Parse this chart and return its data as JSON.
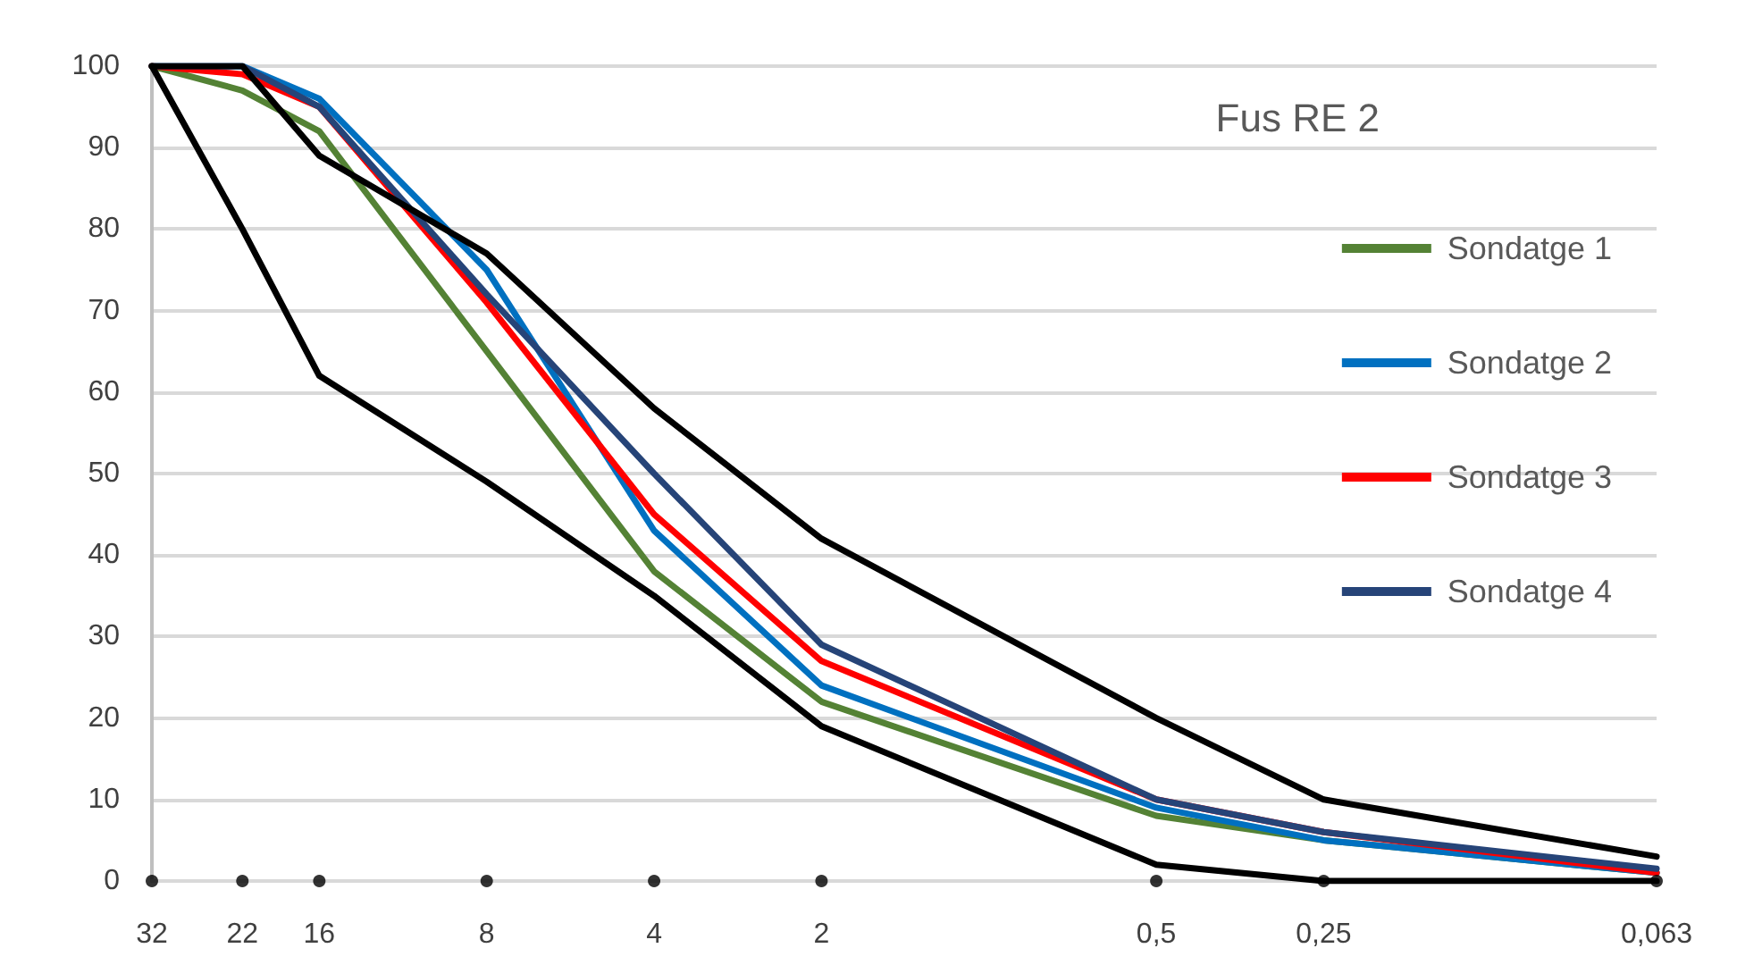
{
  "chart_data": {
    "type": "line",
    "title": "Fus RE 2",
    "x": [
      32,
      22,
      16,
      8,
      4,
      2,
      0.5,
      0.25,
      0.063
    ],
    "series": [
      {
        "name": "Sondatge 1",
        "color": "#548235",
        "values": [
          100,
          97,
          92,
          65,
          38,
          22,
          8,
          5,
          1
        ]
      },
      {
        "name": "Sondatge 2",
        "color": "#0070c0",
        "values": [
          100,
          100,
          96,
          75,
          43,
          24,
          9,
          5,
          1
        ]
      },
      {
        "name": "Sondatge 3",
        "color": "#ff0000",
        "values": [
          100,
          99,
          95,
          71,
          45,
          27,
          10,
          6,
          1
        ]
      },
      {
        "name": "Sondatge 4",
        "color": "#264478",
        "values": [
          100,
          100,
          95,
          72,
          50,
          29,
          10,
          6,
          1.5
        ]
      },
      {
        "color": "#000000",
        "values": [
          100,
          100,
          89,
          77,
          58,
          42,
          20,
          10,
          3
        ]
      },
      {
        "color": "#000000",
        "values": [
          100,
          80,
          62,
          49,
          35,
          19,
          2,
          0,
          0
        ]
      },
      {
        "type": "scatter",
        "marker": "circle",
        "color": "#000000",
        "values": [
          0,
          0,
          0,
          0,
          0,
          0,
          0,
          0,
          0
        ]
      }
    ],
    "log": "x",
    "xlim": [
      32,
      0.063
    ],
    "xticks": [
      32,
      22,
      16,
      8,
      4,
      2,
      {
        "value": 0.5,
        "label": "0,5"
      },
      {
        "value": 0.25,
        "label": "0,25"
      },
      {
        "value": 0.063,
        "label": "0,063"
      }
    ],
    "ylim": [
      0,
      100
    ],
    "yticks": [
      0,
      10,
      20,
      30,
      40,
      50,
      60,
      70,
      80,
      90,
      100
    ],
    "grid": "y",
    "legend": "right",
    "marker": "none",
    "line_style": "solid"
  }
}
